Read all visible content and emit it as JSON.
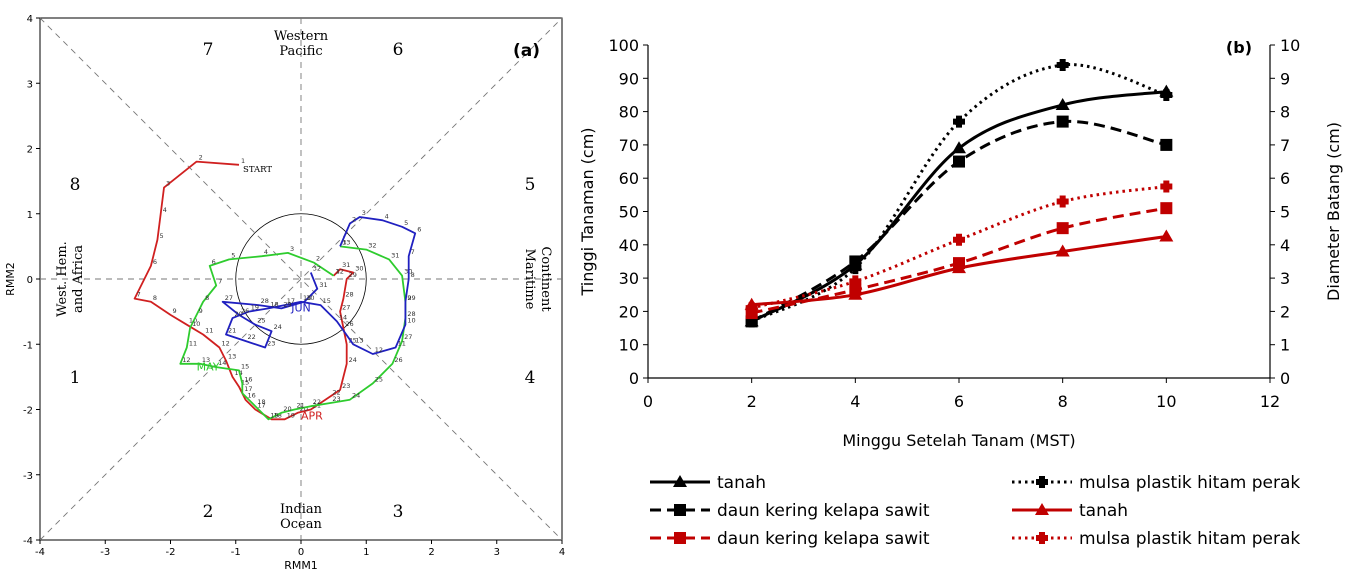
{
  "chart_data": [
    {
      "type": "scatter",
      "panel_label": "(a)",
      "xlabel": "RMM1",
      "ylabel": "RMM2",
      "xlim": [
        -4,
        4
      ],
      "ylim": [
        -4,
        4
      ],
      "xticks": [
        "-4",
        "-3",
        "-2",
        "-1",
        "0",
        "1",
        "2",
        "3",
        "4"
      ],
      "yticks": [
        "-4",
        "-3",
        "-2",
        "-1",
        "0",
        "1",
        "2",
        "3",
        "4"
      ],
      "phase_numbers": [
        "1",
        "2",
        "3",
        "4",
        "5",
        "6",
        "7",
        "8"
      ],
      "regions": {
        "top": [
          "Western",
          "Pacific"
        ],
        "bottom": [
          "Indian",
          "Ocean"
        ],
        "left": [
          "West. Hem.",
          "and Africa"
        ],
        "right": [
          "Maritime",
          "Continent"
        ]
      },
      "start_label": "START",
      "series": [
        {
          "name": "APR",
          "color": "#d02020",
          "points": [
            [
              -0.95,
              1.75
            ],
            [
              -1.6,
              1.8
            ],
            [
              -2.1,
              1.4
            ],
            [
              -2.15,
              1.0
            ],
            [
              -2.2,
              0.6
            ],
            [
              -2.3,
              0.2
            ],
            [
              -2.55,
              -0.3
            ],
            [
              -2.3,
              -0.35
            ],
            [
              -2.0,
              -0.55
            ],
            [
              -1.75,
              -0.7
            ],
            [
              -1.5,
              -0.85
            ],
            [
              -1.25,
              -1.05
            ],
            [
              -1.15,
              -1.25
            ],
            [
              -1.05,
              -1.5
            ],
            [
              -0.95,
              -1.65
            ],
            [
              -0.85,
              -1.85
            ],
            [
              -0.7,
              -2.0
            ],
            [
              -0.45,
              -2.15
            ],
            [
              -0.25,
              -2.15
            ],
            [
              -0.05,
              -2.05
            ],
            [
              0.15,
              -2.0
            ],
            [
              0.45,
              -1.8
            ],
            [
              0.6,
              -1.7
            ],
            [
              0.7,
              -1.3
            ],
            [
              0.7,
              -1.0
            ],
            [
              0.65,
              -0.75
            ],
            [
              0.6,
              -0.5
            ],
            [
              0.65,
              -0.3
            ],
            [
              0.7,
              0.0
            ],
            [
              0.8,
              0.1
            ],
            [
              0.6,
              0.15
            ],
            [
              0.5,
              0.05
            ]
          ],
          "end_label": "APR"
        },
        {
          "name": "MAY",
          "color": "#2ecc2e",
          "points": [
            [
              0.5,
              0.05
            ],
            [
              0.2,
              0.25
            ],
            [
              -0.2,
              0.4
            ],
            [
              -0.6,
              0.35
            ],
            [
              -1.1,
              0.3
            ],
            [
              -1.4,
              0.2
            ],
            [
              -1.3,
              -0.1
            ],
            [
              -1.5,
              -0.35
            ],
            [
              -1.6,
              -0.55
            ],
            [
              -1.7,
              -0.75
            ],
            [
              -1.75,
              -1.05
            ],
            [
              -1.85,
              -1.3
            ],
            [
              -1.55,
              -1.3
            ],
            [
              -1.3,
              -1.35
            ],
            [
              -0.95,
              -1.4
            ],
            [
              -0.9,
              -1.6
            ],
            [
              -0.9,
              -1.75
            ],
            [
              -0.7,
              -1.95
            ],
            [
              -0.5,
              -2.15
            ],
            [
              -0.3,
              -2.05
            ],
            [
              -0.1,
              -2.0
            ],
            [
              0.15,
              -1.95
            ],
            [
              0.45,
              -1.9
            ],
            [
              0.75,
              -1.85
            ],
            [
              1.1,
              -1.6
            ],
            [
              1.4,
              -1.3
            ],
            [
              1.55,
              -0.95
            ],
            [
              1.6,
              -0.6
            ],
            [
              1.6,
              -0.35
            ],
            [
              1.55,
              0.05
            ],
            [
              1.35,
              0.3
            ],
            [
              1.0,
              0.45
            ],
            [
              0.6,
              0.5
            ]
          ],
          "end_label": "MAY"
        },
        {
          "name": "JUN",
          "color": "#2020c0",
          "points": [
            [
              0.6,
              0.5
            ],
            [
              0.75,
              0.85
            ],
            [
              0.9,
              0.95
            ],
            [
              1.25,
              0.9
            ],
            [
              1.55,
              0.8
            ],
            [
              1.75,
              0.7
            ],
            [
              1.65,
              0.35
            ],
            [
              1.65,
              0.0
            ],
            [
              1.6,
              -0.35
            ],
            [
              1.6,
              -0.7
            ],
            [
              1.45,
              -1.05
            ],
            [
              1.1,
              -1.15
            ],
            [
              0.8,
              -1.0
            ],
            [
              0.55,
              -0.65
            ],
            [
              0.3,
              -0.4
            ],
            [
              0.0,
              -0.35
            ],
            [
              -0.25,
              -0.4
            ],
            [
              -0.5,
              -0.45
            ],
            [
              -0.8,
              -0.5
            ],
            [
              -1.05,
              -0.6
            ],
            [
              -1.15,
              -0.85
            ],
            [
              -0.85,
              -0.95
            ],
            [
              -0.55,
              -1.05
            ],
            [
              -0.45,
              -0.8
            ],
            [
              -0.7,
              -0.7
            ],
            [
              -0.95,
              -0.55
            ],
            [
              -1.2,
              -0.35
            ],
            [
              -0.65,
              -0.4
            ],
            [
              -0.3,
              -0.45
            ],
            [
              0.05,
              -0.35
            ],
            [
              0.25,
              -0.15
            ],
            [
              0.15,
              0.1
            ]
          ],
          "end_label": "JUN"
        }
      ]
    },
    {
      "type": "line",
      "panel_label": "(b)",
      "xlabel": "Minggu Setelah Tanam (MST)",
      "ylabel": "Tinggi Tanaman (cm)",
      "y2label": "Diameter Batang (cm)",
      "xlim": [
        0,
        12
      ],
      "ylim": [
        0,
        100
      ],
      "y2lim": [
        0,
        10
      ],
      "xticks": [
        "0",
        "2",
        "4",
        "6",
        "8",
        "10",
        "12"
      ],
      "yticks": [
        "0",
        "10",
        "20",
        "30",
        "40",
        "50",
        "60",
        "70",
        "80",
        "90",
        "100"
      ],
      "y2ticks": [
        "0",
        "1",
        "2",
        "3",
        "4",
        "5",
        "6",
        "7",
        "8",
        "9",
        "10"
      ],
      "x": [
        2,
        4,
        6,
        8,
        10
      ],
      "series": [
        {
          "name": "tanah",
          "axis": "left",
          "color": "#000000",
          "line": "solid",
          "marker": "triangle",
          "values": [
            17,
            34,
            69,
            82,
            86
          ]
        },
        {
          "name": "daun kering kelapa sawit",
          "axis": "left",
          "color": "#000000",
          "line": "dashed",
          "marker": "square",
          "values": [
            17,
            35,
            65,
            77,
            70
          ]
        },
        {
          "name": "mulsa plastik hitam perak",
          "axis": "left",
          "color": "#000000",
          "line": "dotted",
          "marker": "plus",
          "values": [
            17,
            33,
            77,
            94,
            85
          ]
        },
        {
          "name": "tanah",
          "axis": "right",
          "color": "#c00000",
          "line": "solid",
          "marker": "triangle",
          "values": [
            2.2,
            2.5,
            3.3,
            3.8,
            4.25
          ]
        },
        {
          "name": "daun kering kelapa sawit",
          "axis": "right",
          "color": "#c00000",
          "line": "dashed",
          "marker": "square",
          "values": [
            1.95,
            2.65,
            3.45,
            4.5,
            5.1
          ]
        },
        {
          "name": "mulsa plastik hitam perak",
          "axis": "right",
          "color": "#c00000",
          "line": "dotted",
          "marker": "plus",
          "values": [
            2.1,
            2.9,
            4.15,
            5.3,
            5.75
          ]
        }
      ],
      "legend_position": "bottom"
    }
  ]
}
